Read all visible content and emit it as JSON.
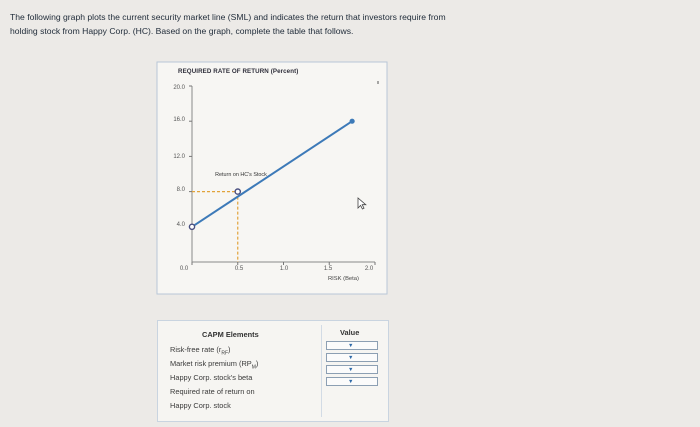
{
  "intro": {
    "line1": "The following graph plots the current security market line (SML) and indicates the return that investors require from",
    "line2": "holding stock from Happy Corp. (HC). Based on the graph, complete the table that follows."
  },
  "chart_data": {
    "type": "line",
    "title": "REQUIRED RATE OF RETURN (Percent)",
    "xlabel": "RISK (Beta)",
    "ylabel": "REQUIRED RATE OF RETURN (Percent)",
    "x_ticks": [
      "0.0",
      "0.5",
      "1.0",
      "1.5",
      "2.0"
    ],
    "y_ticks": [
      "20.0",
      "16.0",
      "12.0",
      "8.0",
      "4.0"
    ],
    "xlim": [
      0,
      2
    ],
    "ylim": [
      0,
      20
    ],
    "series": [
      {
        "x": [
          0,
          1.75
        ],
        "y": [
          4,
          16
        ]
      }
    ],
    "highlight_point": {
      "x": 0.5,
      "y": 8,
      "label": "Return on HC's Stock"
    },
    "risk_free_point": {
      "x": 0,
      "y": 4
    },
    "colors": {
      "line": "#3d7ab8",
      "marker": "#4a4f80",
      "guide": "#e2a33a"
    }
  },
  "table": {
    "col_elements": "CAPM Elements",
    "col_value": "Value",
    "rows": [
      {
        "label_main": "Risk-free rate (r",
        "label_sub": "RF",
        "label_end": ")"
      },
      {
        "label_main": "Market risk premium (RP",
        "label_sub": "M",
        "label_end": ")"
      },
      {
        "label_main": "Happy Corp. stock's beta",
        "label_sub": "",
        "label_end": ""
      },
      {
        "label_main": "Required rate of return on",
        "label_sub": "",
        "label_end": ""
      },
      {
        "label_main": "Happy Corp. stock",
        "label_sub": "",
        "label_end": ""
      }
    ],
    "dropdown_arrow": "▼"
  }
}
